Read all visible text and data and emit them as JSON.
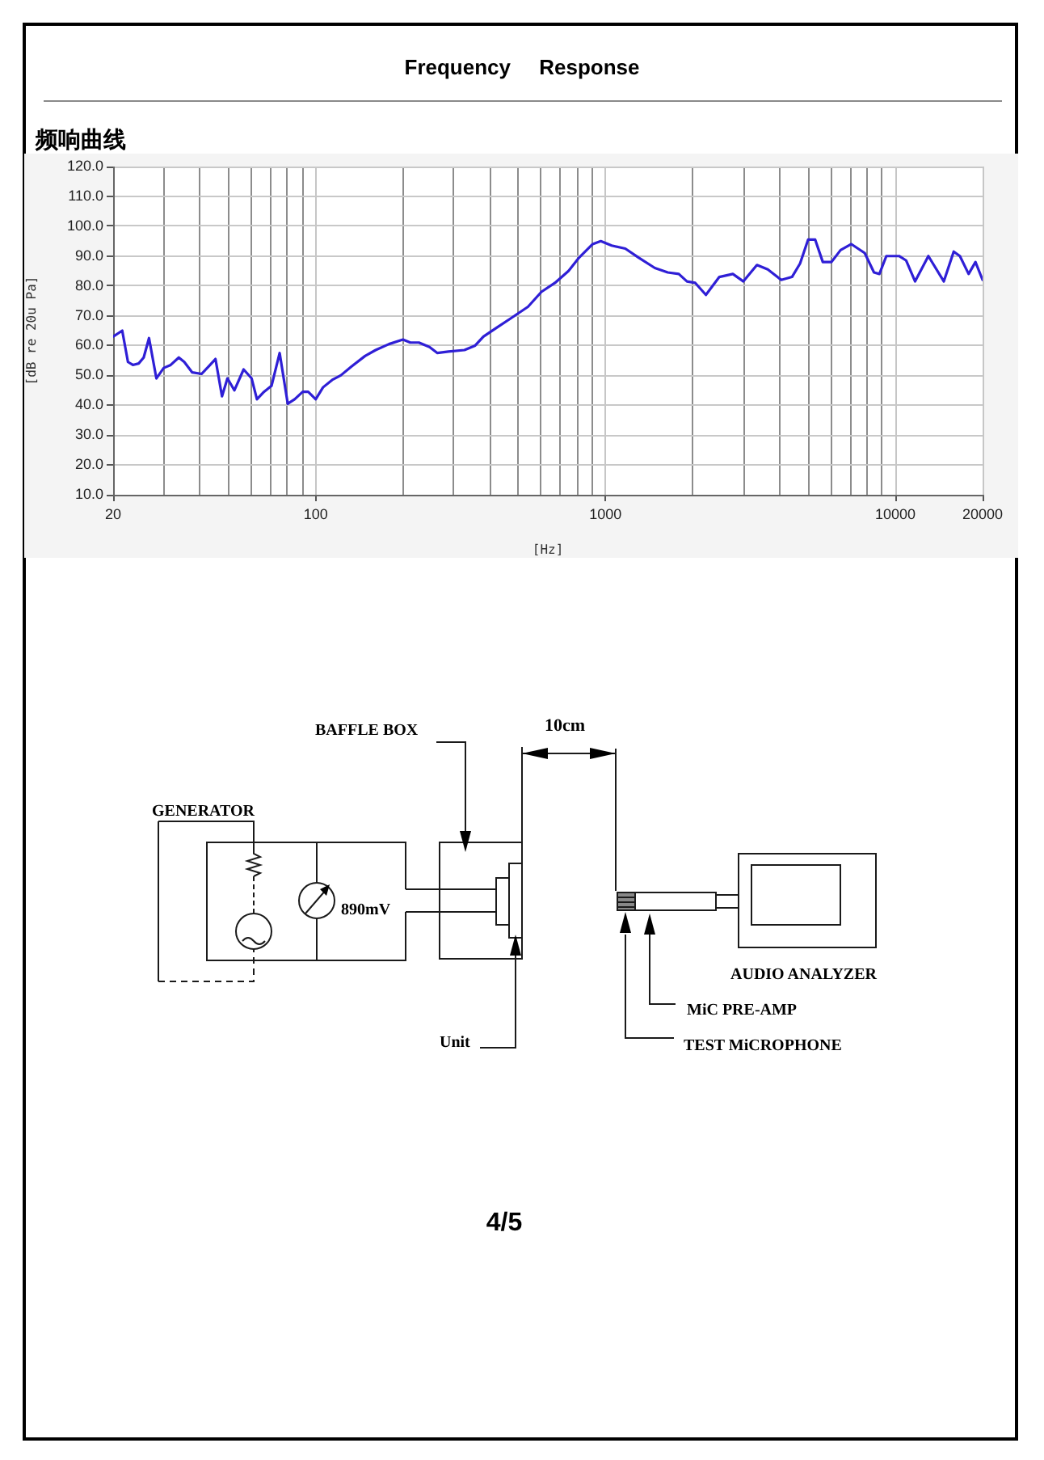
{
  "chart_data": {
    "type": "line",
    "title": "Frequency Response",
    "subtitle": "频响曲线",
    "xlabel": "[Hz]",
    "ylabel": "[dB re 20u Pa]",
    "log": "x",
    "grid": true,
    "xlim": [
      20,
      20000
    ],
    "xticks": [
      20,
      {
        "value": 30,
        "label": null
      },
      {
        "value": 40,
        "label": null
      },
      {
        "value": 50,
        "label": null
      },
      {
        "value": 60,
        "label": null
      },
      {
        "value": 70,
        "label": null
      },
      {
        "value": 80,
        "label": null
      },
      {
        "value": 90,
        "label": null
      },
      100,
      {
        "value": 200,
        "label": null
      },
      {
        "value": 300,
        "label": null
      },
      {
        "value": 400,
        "label": null
      },
      {
        "value": 500,
        "label": null
      },
      {
        "value": 600,
        "label": null
      },
      {
        "value": 700,
        "label": null
      },
      {
        "value": 800,
        "label": null
      },
      {
        "value": 900,
        "label": null
      },
      1000,
      {
        "value": 2000,
        "label": null
      },
      {
        "value": 3000,
        "label": null
      },
      {
        "value": 4000,
        "label": null
      },
      {
        "value": 5000,
        "label": null
      },
      {
        "value": 6000,
        "label": null
      },
      {
        "value": 7000,
        "label": null
      },
      {
        "value": 8000,
        "label": null
      },
      {
        "value": 9000,
        "label": null
      },
      10000,
      20000
    ],
    "ylim": [
      10,
      120
    ],
    "yticks": [
      {
        "value": 10,
        "label": "10.0"
      },
      {
        "value": 20,
        "label": "20.0"
      },
      {
        "value": 30,
        "label": "30.0"
      },
      {
        "value": 40,
        "label": "40.0"
      },
      {
        "value": 50,
        "label": "50.0"
      },
      {
        "value": 60,
        "label": "60.0"
      },
      {
        "value": 70,
        "label": "70.0"
      },
      {
        "value": 80,
        "label": "80.0"
      },
      {
        "value": 90,
        "label": "90.0"
      },
      {
        "value": 100,
        "label": "100.0"
      },
      {
        "value": 110,
        "label": "110.0"
      },
      {
        "value": 120,
        "label": "120.0"
      }
    ],
    "x": [
      20,
      21.5,
      22.5,
      23.4,
      24.5,
      25.5,
      26.6,
      28.2,
      29.9,
      31.6,
      33.7,
      35.2,
      37.5,
      40.4,
      42.7,
      45.1,
      47.5,
      49.6,
      52.4,
      56.4,
      60.1,
      62.7,
      66.3,
      70.4,
      75.1,
      80.1,
      84.6,
      90.2,
      94.2,
      100,
      106,
      114,
      122,
      133,
      148,
      161,
      179,
      200,
      212,
      227,
      247,
      263,
      287,
      326,
      355,
      379,
      421,
      469,
      540,
      601,
      669,
      745,
      811,
      903,
      963,
      1050,
      1170,
      1300,
      1480,
      1640,
      1790,
      1910,
      2040,
      2220,
      2470,
      2750,
      2990,
      3330,
      3630,
      4040,
      4400,
      4690,
      5000,
      5290,
      5620,
      6020,
      6470,
      7050,
      7840,
      8440,
      8810,
      9310,
      10300,
      10900,
      11700,
      13000,
      14700,
      15900,
      16700,
      17900,
      18900,
      20000
    ],
    "series": [
      {
        "color": "#2f1fd6",
        "values": [
          63,
          65,
          54.5,
          53.5,
          54,
          56,
          62.5,
          49,
          52.5,
          53.5,
          56,
          54.5,
          51,
          50.5,
          53,
          55.5,
          43,
          49,
          45,
          52,
          49,
          42,
          44.5,
          46.5,
          57.5,
          40.5,
          42,
          44.5,
          44.5,
          42,
          46,
          48.5,
          50,
          53,
          56.5,
          58.5,
          60.5,
          62,
          61,
          61,
          59.5,
          57.5,
          58,
          58.5,
          60,
          63,
          66,
          69,
          73,
          78,
          81,
          85,
          89.5,
          94,
          95,
          93.5,
          92.5,
          89.5,
          86,
          84.5,
          84,
          81.5,
          81,
          77,
          83,
          84,
          81.5,
          87,
          85.5,
          82,
          83,
          87.5,
          95.5,
          95.5,
          88,
          88,
          92,
          94,
          91,
          84.5,
          84,
          90,
          90,
          88.5,
          81.5,
          90,
          81.5,
          91.5,
          90,
          84,
          88,
          82
        ]
      }
    ],
    "annotations": [
      "BAFFLE BOX",
      "10cm",
      "GENERATOR",
      "890mV",
      "Unit",
      "AUDIO ANALYZER",
      "MiC PRE-AMP",
      "TEST MiCROPHONE",
      "4/5"
    ]
  }
}
